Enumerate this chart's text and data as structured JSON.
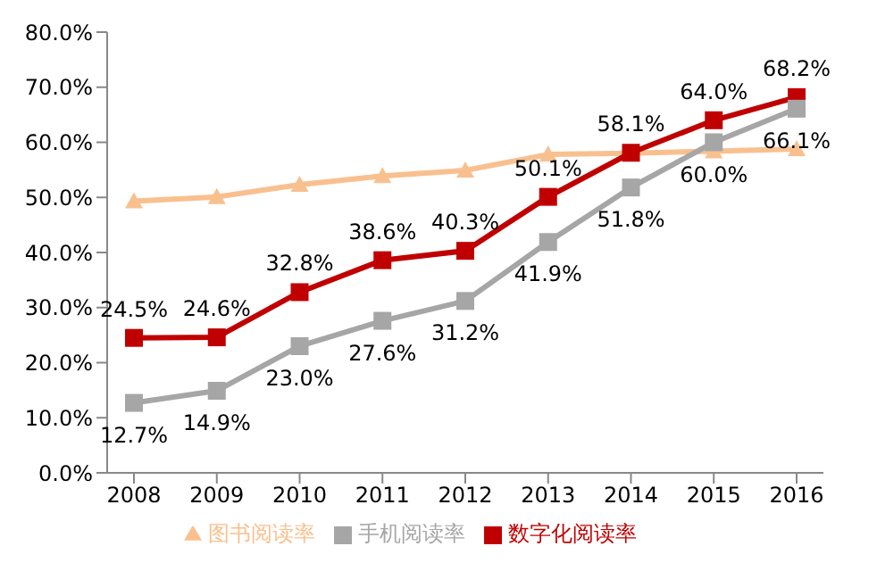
{
  "chart_data": {
    "type": "line",
    "categories": [
      "2008",
      "2009",
      "2010",
      "2011",
      "2012",
      "2013",
      "2014",
      "2015",
      "2016"
    ],
    "ylim": [
      0,
      80
    ],
    "yticks": [
      {
        "value": 0,
        "label": "0.0%"
      },
      {
        "value": 10,
        "label": "10.0%"
      },
      {
        "value": 20,
        "label": "20.0%"
      },
      {
        "value": 30,
        "label": "30.0%"
      },
      {
        "value": 40,
        "label": "40.0%"
      },
      {
        "value": 50,
        "label": "50.0%"
      },
      {
        "value": 60,
        "label": "60.0%"
      },
      {
        "value": 70,
        "label": "70.0%"
      },
      {
        "value": 80,
        "label": "80.0%"
      }
    ],
    "grid": false,
    "legend": "bottom",
    "line_style": "solid",
    "series": [
      {
        "name": "图书阅读率",
        "color": "#f9c08f",
        "marker": "triangle",
        "values": [
          49.3,
          50.1,
          52.3,
          53.9,
          54.9,
          57.8,
          58.0,
          58.4,
          58.8
        ]
      },
      {
        "name": "数字化阅读率",
        "color": "#c00000",
        "marker": "square",
        "values": [
          24.5,
          24.6,
          32.8,
          38.6,
          40.3,
          50.1,
          58.1,
          64.0,
          68.2
        ],
        "value_labels": [
          "24.5%",
          "24.6%",
          "32.8%",
          "38.6%",
          "40.3%",
          "50.1%",
          "58.1%",
          "64.0%",
          "68.2%"
        ]
      },
      {
        "name": "手机阅读率",
        "color": "#a6a6a6",
        "marker": "square",
        "values": [
          12.7,
          14.9,
          23.0,
          27.6,
          31.2,
          41.9,
          51.8,
          60.0,
          66.1
        ],
        "value_labels": [
          "12.7%",
          "14.9%",
          "23.0%",
          "27.6%",
          "31.2%",
          "41.9%",
          "51.8%",
          "60.0%",
          "66.1%"
        ]
      }
    ]
  }
}
